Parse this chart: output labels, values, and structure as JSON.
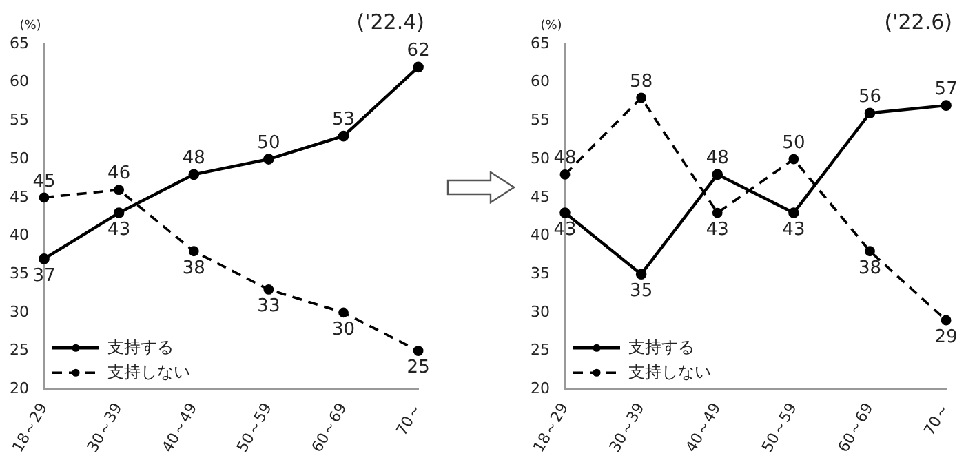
{
  "chart_data": [
    {
      "type": "line",
      "title": "('22.4)",
      "ylabel": "(%)",
      "categories": [
        "18～29",
        "30～39",
        "40～49",
        "50～59",
        "60～69",
        "70～"
      ],
      "series": [
        {
          "name": "支持する",
          "color": "#000000",
          "values": [
            37,
            43,
            48,
            50,
            53,
            62
          ],
          "line_style": "solid"
        },
        {
          "name": "支持しない",
          "color": "#000000",
          "values": [
            45,
            46,
            38,
            33,
            30,
            25
          ],
          "line_style": "dashed"
        }
      ],
      "ylim": [
        20,
        65
      ],
      "yticks": [
        20,
        25,
        30,
        35,
        40,
        45,
        50,
        55,
        60,
        65
      ],
      "grid": false,
      "legend": "bottom left",
      "marker": "circle",
      "data_labels": true
    },
    {
      "type": "line",
      "title": "('22.6)",
      "ylabel": "(%)",
      "categories": [
        "18～29",
        "30～39",
        "40～49",
        "50～59",
        "60～69",
        "70～"
      ],
      "series": [
        {
          "name": "支持する",
          "color": "#000000",
          "values": [
            43,
            35,
            48,
            43,
            56,
            57
          ],
          "line_style": "solid"
        },
        {
          "name": "支持しない",
          "color": "#000000",
          "values": [
            48,
            58,
            43,
            50,
            38,
            29
          ],
          "line_style": "dashed"
        }
      ],
      "ylim": [
        20,
        65
      ],
      "yticks": [
        20,
        25,
        30,
        35,
        40,
        45,
        50,
        55,
        60,
        65
      ],
      "grid": false,
      "legend": "bottom left",
      "marker": "circle",
      "data_labels": true
    }
  ]
}
